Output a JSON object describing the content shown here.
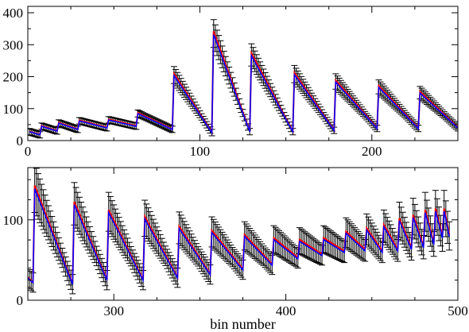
{
  "colors": {
    "data": "#000000",
    "model_a": "#ff0000",
    "model_b": "#0000ff",
    "frame": "#000000",
    "background": "#ffffff"
  },
  "chart_data": [
    {
      "type": "line",
      "panel": "top",
      "xlabel": "",
      "ylabel": "",
      "xlim": [
        0,
        250
      ],
      "ylim": [
        0,
        420
      ],
      "xticks": [
        0,
        100,
        200
      ],
      "yticks": [
        0,
        100,
        200,
        300,
        400
      ],
      "grid": false,
      "legend": "none",
      "segments": [
        {
          "start": 1,
          "end": 7,
          "peak": 28,
          "tail": 18
        },
        {
          "start": 8,
          "end": 17,
          "peak": 45,
          "tail": 30
        },
        {
          "start": 18,
          "end": 29,
          "peak": 55,
          "tail": 35
        },
        {
          "start": 30,
          "end": 46,
          "peak": 62,
          "tail": 40
        },
        {
          "start": 47,
          "end": 63,
          "peak": 65,
          "tail": 45
        },
        {
          "start": 64,
          "end": 84,
          "peak": 85,
          "tail": 35
        },
        {
          "start": 85,
          "end": 107,
          "peak": 205,
          "tail": 25
        },
        {
          "start": 108,
          "end": 129,
          "peak": 335,
          "tail": 28
        },
        {
          "start": 130,
          "end": 154,
          "peak": 268,
          "tail": 28
        },
        {
          "start": 155,
          "end": 178,
          "peak": 208,
          "tail": 32
        },
        {
          "start": 179,
          "end": 203,
          "peak": 185,
          "tail": 38
        },
        {
          "start": 204,
          "end": 227,
          "peak": 168,
          "tail": 38
        },
        {
          "start": 228,
          "end": 250,
          "peak": 150,
          "tail": 40
        }
      ],
      "errorbar_fraction": 0.13,
      "errorbar_min": 10
    },
    {
      "type": "line",
      "panel": "bottom",
      "xlabel": "bin number",
      "ylabel": "",
      "xlim": [
        250,
        500
      ],
      "ylim": [
        0,
        165
      ],
      "xticks": [
        300,
        400,
        500
      ],
      "yticks": [
        0,
        100
      ],
      "grid": false,
      "legend": "none",
      "segments": [
        {
          "start": 250,
          "end": 253,
          "peak": 28,
          "tail": 22
        },
        {
          "start": 254,
          "end": 276,
          "peak": 140,
          "tail": 20
        },
        {
          "start": 277,
          "end": 296,
          "peak": 120,
          "tail": 25
        },
        {
          "start": 297,
          "end": 317,
          "peak": 110,
          "tail": 25
        },
        {
          "start": 318,
          "end": 337,
          "peak": 102,
          "tail": 28
        },
        {
          "start": 338,
          "end": 356,
          "peak": 90,
          "tail": 32
        },
        {
          "start": 357,
          "end": 375,
          "peak": 85,
          "tail": 38
        },
        {
          "start": 376,
          "end": 392,
          "peak": 80,
          "tail": 44
        },
        {
          "start": 393,
          "end": 407,
          "peak": 76,
          "tail": 52
        },
        {
          "start": 408,
          "end": 421,
          "peak": 74,
          "tail": 56
        },
        {
          "start": 422,
          "end": 434,
          "peak": 76,
          "tail": 60
        },
        {
          "start": 435,
          "end": 446,
          "peak": 84,
          "tail": 62
        },
        {
          "start": 447,
          "end": 456,
          "peak": 88,
          "tail": 60
        },
        {
          "start": 457,
          "end": 465,
          "peak": 92,
          "tail": 62
        },
        {
          "start": 466,
          "end": 473,
          "peak": 100,
          "tail": 64
        },
        {
          "start": 474,
          "end": 480,
          "peak": 104,
          "tail": 66
        },
        {
          "start": 481,
          "end": 486,
          "peak": 110,
          "tail": 70
        },
        {
          "start": 487,
          "end": 491,
          "peak": 112,
          "tail": 78
        },
        {
          "start": 492,
          "end": 495,
          "peak": 112,
          "tail": 80
        }
      ],
      "errorbar_fraction": 0.22,
      "errorbar_min": 12
    }
  ]
}
